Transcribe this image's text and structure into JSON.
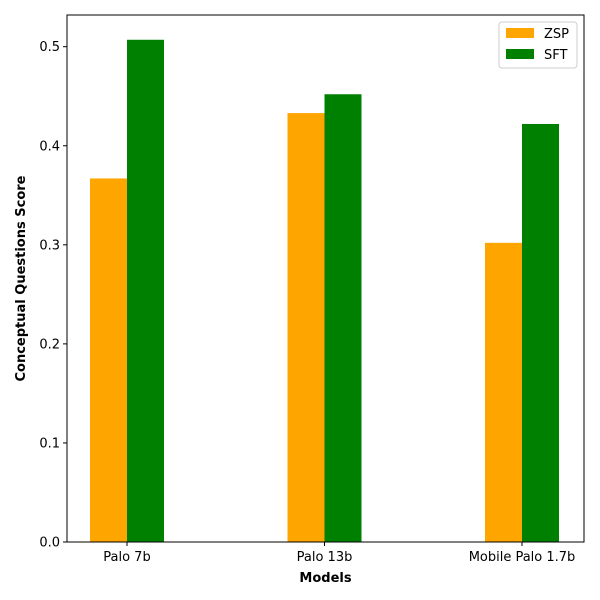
{
  "chart_data": {
    "type": "bar",
    "title": "",
    "xlabel": "Models",
    "ylabel": "Conceptual Questions Score",
    "categories": [
      "Palo 7b",
      "Palo 13b",
      "Mobile Palo 1.7b"
    ],
    "series": [
      {
        "name": "ZSP",
        "color": "#ffa500",
        "values": [
          0.367,
          0.433,
          0.302
        ]
      },
      {
        "name": "SFT",
        "color": "#008000",
        "values": [
          0.507,
          0.452,
          0.422
        ]
      }
    ],
    "ylim": [
      0,
      0.532
    ],
    "yticks": [
      0.0,
      0.1,
      0.2,
      0.3,
      0.4,
      0.5
    ],
    "ytick_labels": [
      "0.0",
      "0.1",
      "0.2",
      "0.3",
      "0.4",
      "0.5"
    ],
    "grid": false,
    "legend_position": "top-right"
  }
}
